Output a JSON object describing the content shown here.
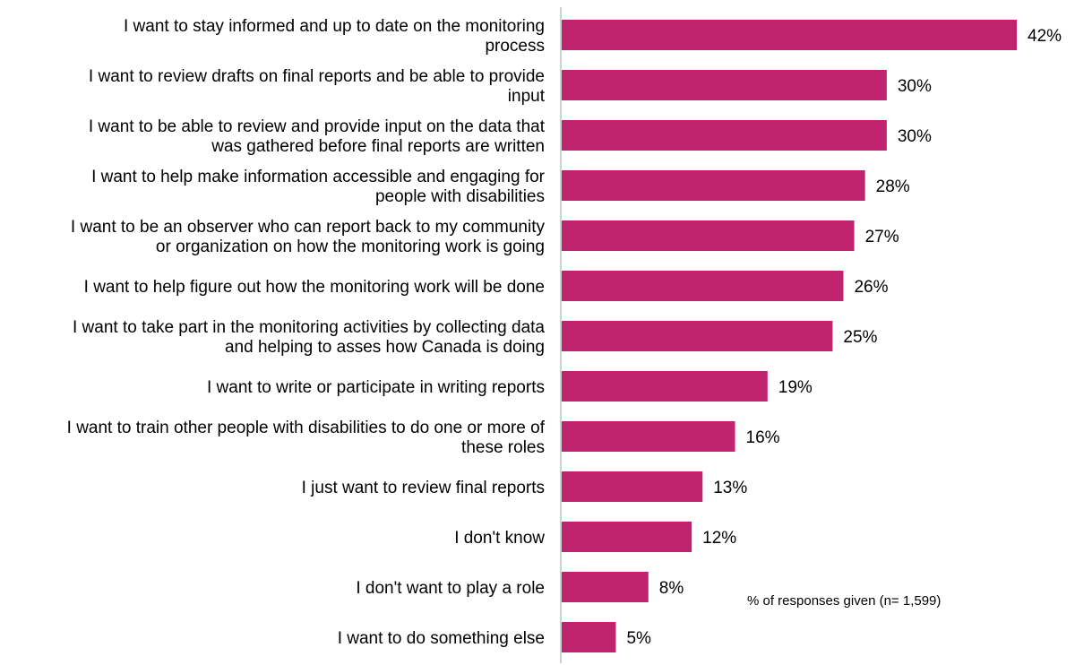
{
  "chart_data": {
    "type": "bar",
    "orientation": "horizontal",
    "categories": [
      [
        "I want to stay informed and up to date on the monitoring",
        "process"
      ],
      [
        "I want to review drafts on final reports and be able to provide",
        "input"
      ],
      [
        "I want to be able to review and provide input on the data that",
        "was gathered before final reports are written"
      ],
      [
        "I want to help make information accessible and engaging for",
        "people with disabilities"
      ],
      [
        "I want to be an observer who can report back to my community",
        "or organization on how the monitoring work is going"
      ],
      [
        "I want to help figure out how the monitoring work will be done"
      ],
      [
        "I want to take part in the monitoring activities by collecting data",
        "and helping to asses how Canada is doing"
      ],
      [
        "I want to write or participate in writing reports"
      ],
      [
        "I want to train other people with disabilities to do one or more of",
        "these roles"
      ],
      [
        "I just want to review final reports"
      ],
      [
        "I don't know"
      ],
      [
        "I don't want to play a role"
      ],
      [
        "I want to do something else"
      ]
    ],
    "values": [
      42,
      30,
      30,
      28,
      27,
      26,
      25,
      19,
      16,
      13,
      12,
      8,
      5
    ],
    "value_labels": [
      "42%",
      "30%",
      "30%",
      "28%",
      "27%",
      "26%",
      "25%",
      "19%",
      "16%",
      "13%",
      "12%",
      "8%",
      "5%"
    ],
    "xlim": [
      0,
      42
    ],
    "bar_color": "#C0246F",
    "axis_color": "#BFBFBF",
    "grid": false,
    "annotation": "% of responses given (n= 1,599)"
  }
}
